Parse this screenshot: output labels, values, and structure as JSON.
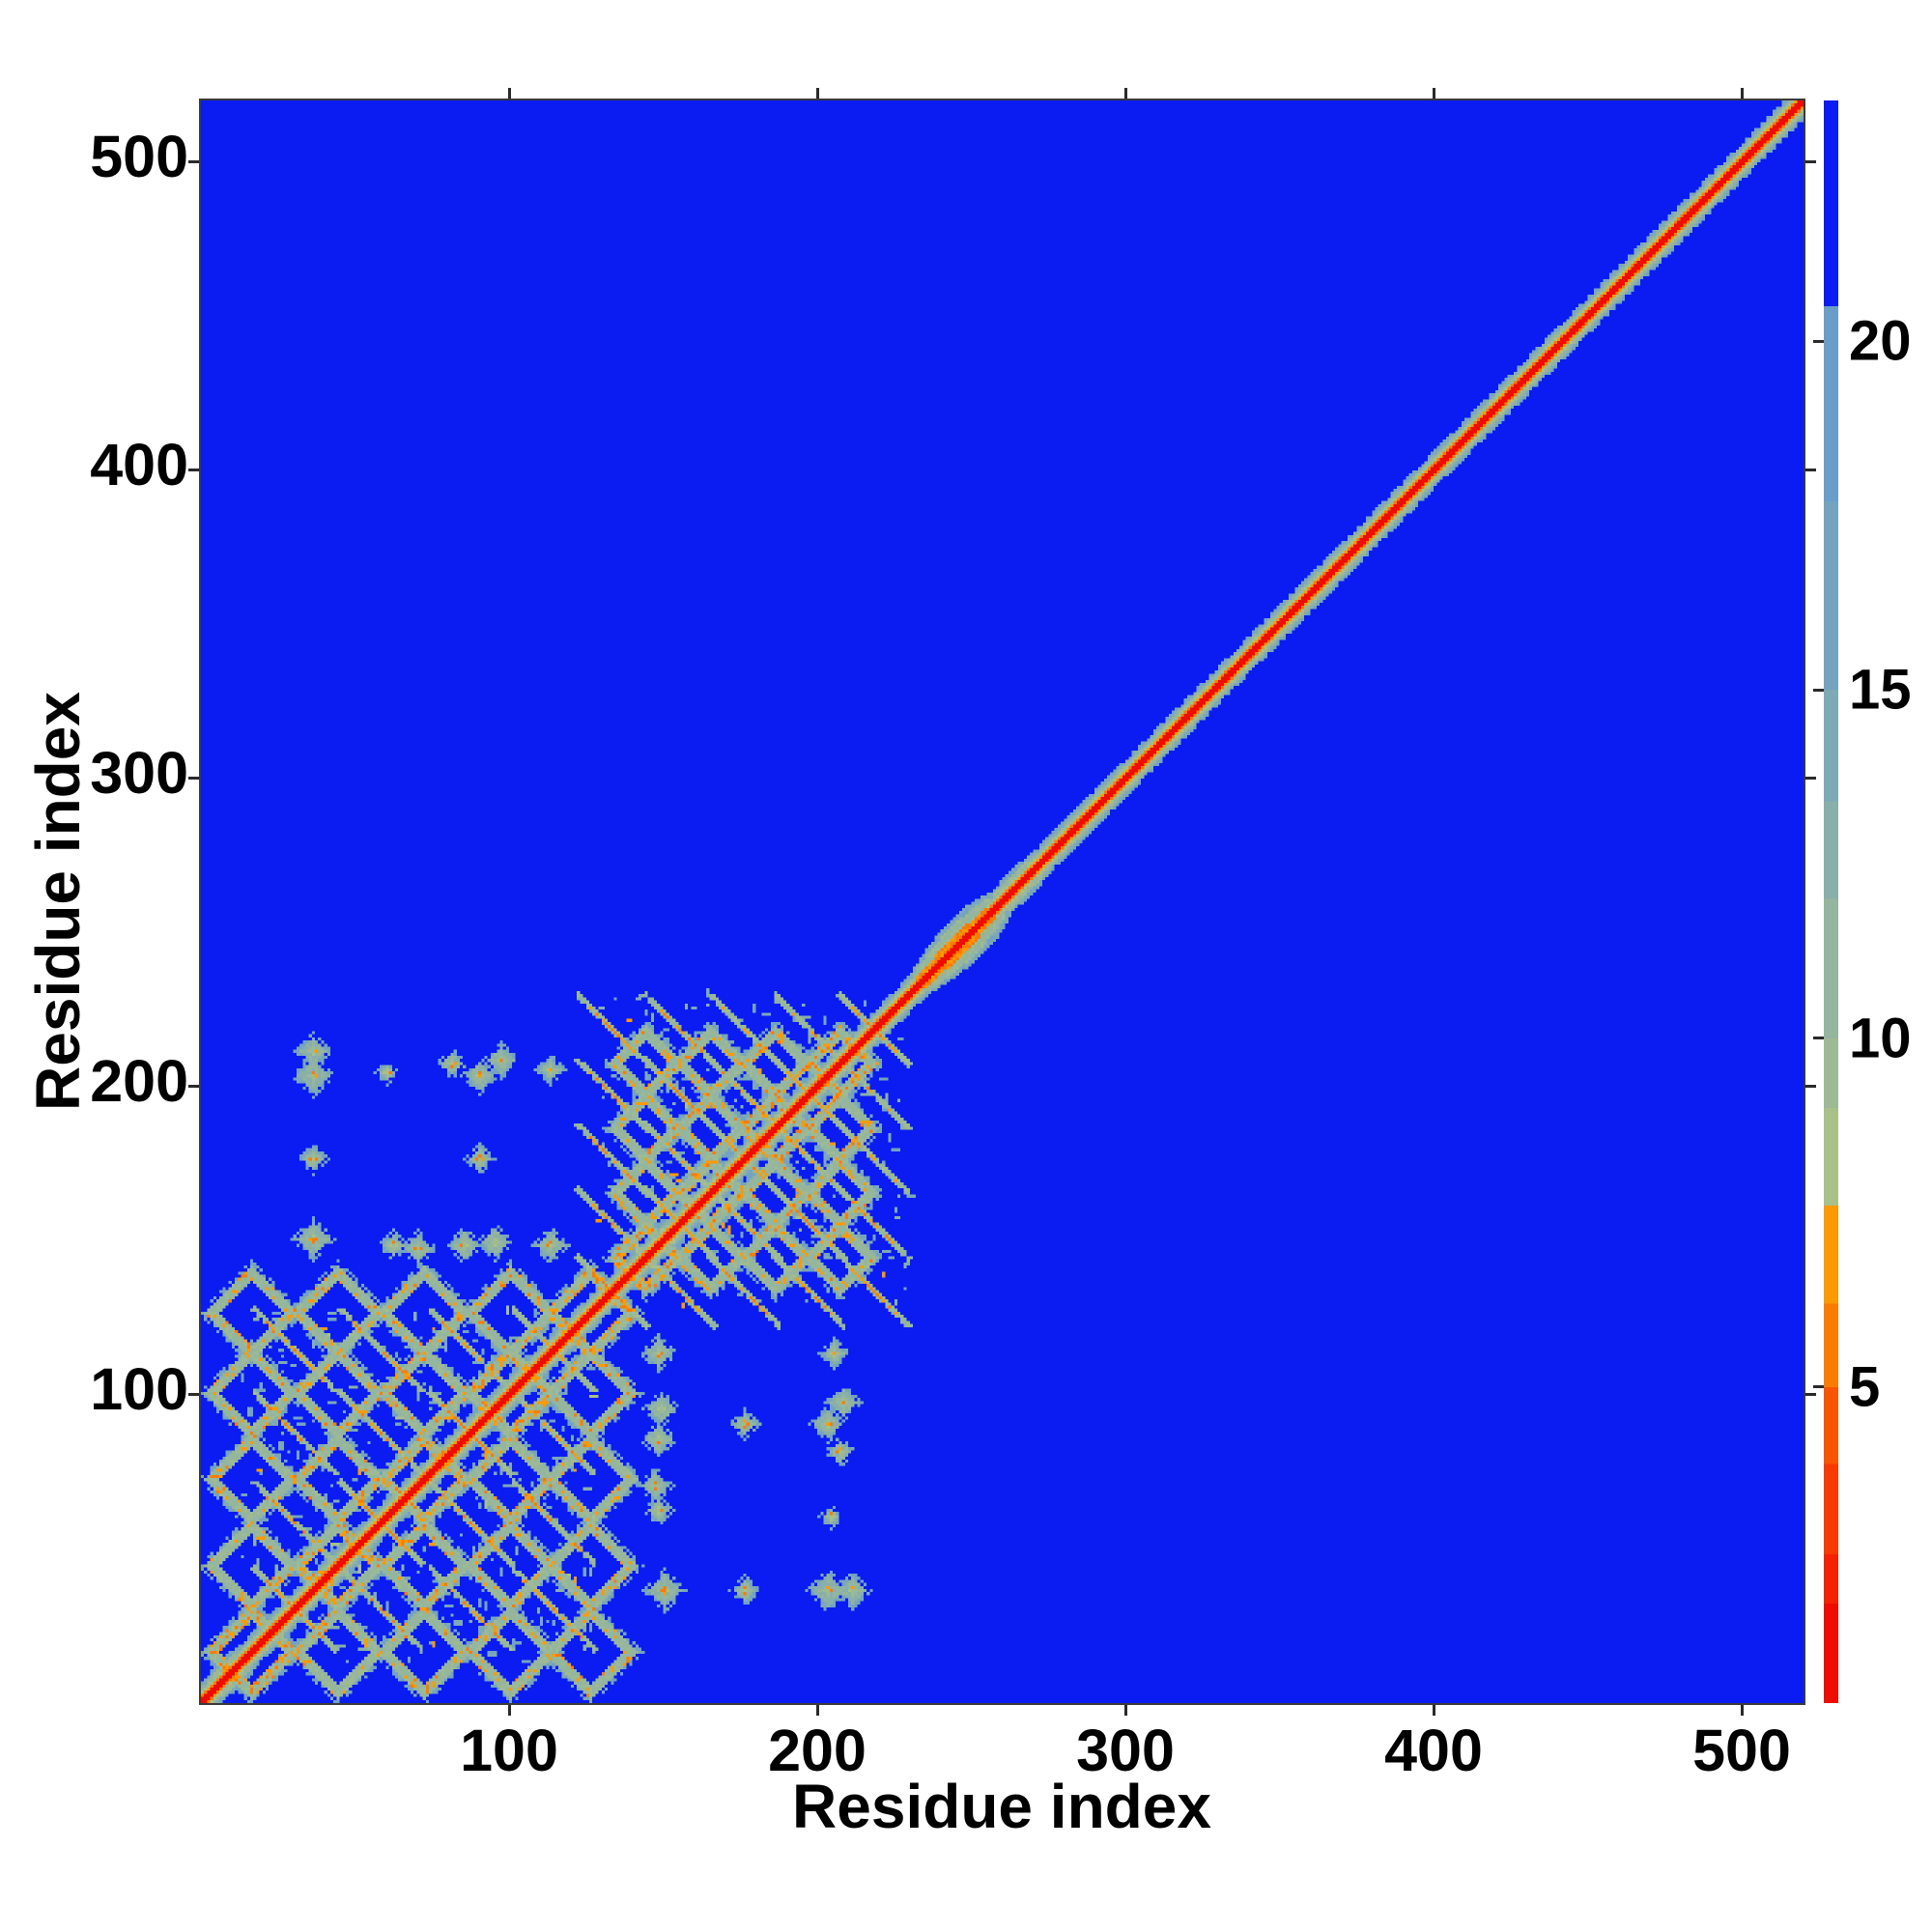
{
  "figure": {
    "background": "#ffffff"
  },
  "axes": {
    "xlabel": "Residue index",
    "ylabel": "Residue index",
    "range": [
      0,
      520
    ],
    "x_ticks": [
      100,
      200,
      300,
      400,
      500
    ],
    "y_ticks": [
      100,
      200,
      300,
      400,
      500
    ]
  },
  "colorbar": {
    "vmin": 0.47,
    "vmax": 23.45,
    "tick_values": [
      20,
      15,
      10,
      5
    ],
    "segments": [
      {
        "from": 23.45,
        "to": 20.5,
        "color": "#0a1cf2"
      },
      {
        "from": 20.5,
        "to": 17.7,
        "color": "#6b9dc9"
      },
      {
        "from": 17.7,
        "to": 15.0,
        "color": "#74a3c0"
      },
      {
        "from": 15.0,
        "to": 13.4,
        "color": "#7ea9b5"
      },
      {
        "from": 13.4,
        "to": 12.0,
        "color": "#89afaa"
      },
      {
        "from": 12.0,
        "to": 10.0,
        "color": "#94b59e"
      },
      {
        "from": 10.0,
        "to": 9.0,
        "color": "#9eba95"
      },
      {
        "from": 9.0,
        "to": 7.6,
        "color": "#a9c08b"
      },
      {
        "from": 7.6,
        "to": 6.2,
        "color": "#fb9a04"
      },
      {
        "from": 6.2,
        "to": 5.0,
        "color": "#f97c02"
      },
      {
        "from": 5.0,
        "to": 3.9,
        "color": "#f85502"
      },
      {
        "from": 3.9,
        "to": 2.6,
        "color": "#f63a01"
      },
      {
        "from": 2.6,
        "to": 1.9,
        "color": "#f32301"
      },
      {
        "from": 1.9,
        "to": 0.47,
        "color": "#ee0d00"
      }
    ]
  },
  "chart_data": {
    "type": "heatmap",
    "title": "",
    "xlabel": "Residue index",
    "ylabel": "Residue index",
    "x_range": [
      0,
      520
    ],
    "y_range": [
      0,
      520
    ],
    "value_range_angstrom": [
      0.47,
      23.45
    ],
    "description": "Symmetric residue-residue distance map of a ~520-residue protein. Red diagonal = self/sequential contacts; vivid blue background = pairs farther than ~22 A. Dense helical-bundle contact lattices occupy residues ~13-128 and ~128-230; the region beyond residue ~230 shows only the thin diagonal.",
    "background_value": 24,
    "diagonal_profile": [
      1.3,
      1.6,
      6.0,
      8.8,
      10.5,
      13.5,
      16.0
    ],
    "diagonal_bulges": [
      {
        "center": 6,
        "half_length": 8,
        "half_width": 5.0
      },
      {
        "center": 20,
        "half_length": 10,
        "half_width": 4.0
      },
      {
        "center": 243,
        "half_length": 15,
        "half_width": 8.0
      },
      {
        "center": 262,
        "half_length": 9,
        "half_width": 5.0
      }
    ],
    "contact_blocks": [
      {
        "name": "helical block 1",
        "range": [
          13,
          128
        ],
        "turn_positions": [
          30,
          58,
          87,
          114
        ],
        "loop_midpoints": [
          16,
          44,
          72,
          100,
          126
        ],
        "arm_half_length": 13,
        "ring_radius": 13,
        "max_pair_span": 4
      },
      {
        "name": "helical block 2",
        "range": [
          128,
          230
        ],
        "turn_positions": [
          133,
          155,
          176,
          197,
          218
        ],
        "loop_midpoints": [
          144,
          165,
          186,
          207
        ],
        "arm_half_length": 11,
        "ring_radius": 10,
        "max_pair_span": 4
      }
    ],
    "sparse_contacts": [
      {
        "i": 36,
        "j": 150,
        "r": 5
      },
      {
        "i": 36,
        "j": 176,
        "r": 3
      },
      {
        "i": 36,
        "j": 203,
        "r": 5
      },
      {
        "i": 36,
        "j": 211,
        "r": 4
      },
      {
        "i": 60,
        "j": 204,
        "r": 2
      },
      {
        "i": 62,
        "j": 148,
        "r": 3
      },
      {
        "i": 70,
        "j": 147,
        "r": 4
      },
      {
        "i": 85,
        "j": 148,
        "r": 4
      },
      {
        "i": 95,
        "j": 149,
        "r": 4
      },
      {
        "i": 90,
        "j": 176,
        "r": 3
      },
      {
        "i": 90,
        "j": 203,
        "r": 4
      },
      {
        "i": 97,
        "j": 208,
        "r": 4
      },
      {
        "i": 81,
        "j": 207,
        "r": 3
      },
      {
        "i": 113,
        "j": 148,
        "r": 4
      },
      {
        "i": 113,
        "j": 205,
        "r": 3
      }
    ],
    "legend_position": "right colorbar",
    "grid": false
  },
  "colors": {
    "background_far": "#0a1cf2",
    "diagonal_core": "#ee0d00",
    "near_contact_orange": "#f97c02",
    "mid_contact_green": "#a9c08b",
    "halo_rim_steel": "#74a3c0",
    "axis_text": "#000000",
    "tick_mark": "#2a2a2a"
  }
}
